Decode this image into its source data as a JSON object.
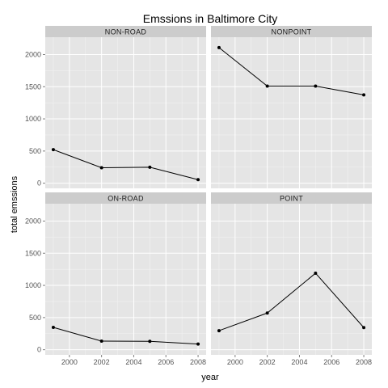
{
  "chart_data": {
    "type": "line",
    "title": "Emssions in Baltimore City",
    "xlabel": "year",
    "ylabel": "total emssions",
    "xlim": [
      1998.5,
      2008.5
    ],
    "ylim": [
      -80,
      2270
    ],
    "x_ticks": [
      2000,
      2002,
      2004,
      2006,
      2008
    ],
    "y_ticks": [
      0,
      500,
      1000,
      1500,
      2000
    ],
    "grid": true,
    "x": [
      1999,
      2002,
      2005,
      2008
    ],
    "facets": [
      {
        "name": "NON-ROAD",
        "values": [
          522,
          241,
          248,
          55
        ]
      },
      {
        "name": "NONPOINT",
        "values": [
          2108,
          1510,
          1510,
          1373
        ]
      },
      {
        "name": "ON-ROAD",
        "values": [
          347,
          134,
          131,
          88
        ]
      },
      {
        "name": "POINT",
        "values": [
          296,
          570,
          1190,
          344
        ]
      }
    ]
  }
}
